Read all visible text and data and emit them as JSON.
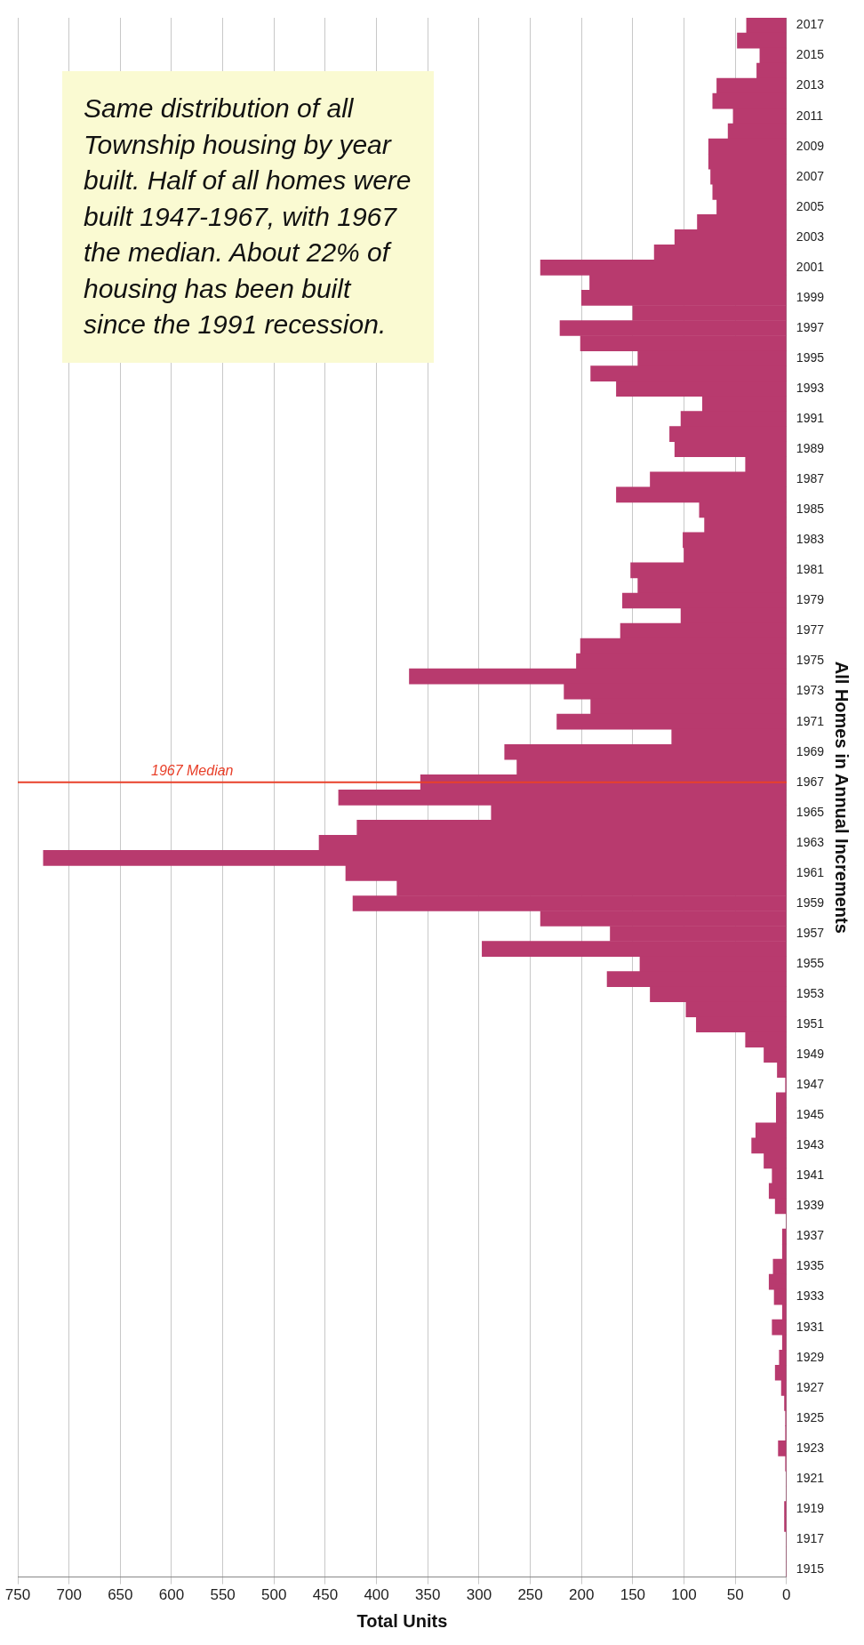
{
  "chart_data": {
    "type": "bar",
    "orientation": "horizontal",
    "xlabel": "Total Units",
    "ylabel": "All Homes in Annual Increments",
    "categories": [
      "2017",
      null,
      "2015",
      null,
      "2013",
      null,
      "2011",
      null,
      "2009",
      null,
      "2007",
      null,
      "2005",
      null,
      "2003",
      null,
      "2001",
      null,
      "1999",
      null,
      "1997",
      null,
      "1995",
      null,
      "1993",
      null,
      "1991",
      null,
      "1989",
      null,
      "1987",
      null,
      "1985",
      null,
      "1983",
      null,
      "1981",
      null,
      "1979",
      null,
      "1977",
      null,
      "1975",
      null,
      "1973",
      null,
      "1971",
      null,
      "1969",
      null,
      "1967",
      null,
      "1965",
      null,
      "1963",
      null,
      "1961",
      null,
      "1959",
      null,
      "1957",
      null,
      "1955",
      null,
      "1953",
      null,
      "1951",
      null,
      "1949",
      null,
      "1947",
      null,
      "1945",
      null,
      "1943",
      null,
      "1941",
      null,
      "1939",
      null,
      "1937",
      null,
      "1935",
      null,
      "1933",
      null,
      "1931",
      null,
      "1929",
      null,
      "1927",
      null,
      "1925",
      null,
      "1923",
      null,
      "1921",
      null,
      "1919",
      null,
      "1917",
      null,
      "1915"
    ],
    "values": [
      39,
      48,
      26,
      29,
      68,
      72,
      52,
      57,
      76,
      76,
      74,
      72,
      68,
      87,
      109,
      129,
      240,
      192,
      200,
      150,
      221,
      201,
      145,
      191,
      166,
      82,
      103,
      114,
      109,
      40,
      133,
      166,
      85,
      80,
      101,
      100,
      152,
      145,
      160,
      103,
      162,
      201,
      205,
      368,
      217,
      191,
      224,
      112,
      275,
      263,
      357,
      437,
      288,
      419,
      456,
      725,
      430,
      380,
      423,
      240,
      172,
      297,
      143,
      175,
      133,
      98,
      88,
      40,
      22,
      9,
      1,
      10,
      10,
      30,
      34,
      22,
      14,
      17,
      11,
      0,
      4,
      4,
      13,
      17,
      12,
      4,
      14,
      4,
      7,
      11,
      5,
      2,
      1,
      1,
      8,
      1,
      0,
      0,
      2,
      2,
      0,
      0,
      0
    ],
    "color": "#b83a6e",
    "xlim": [
      750,
      0
    ],
    "xticks": [
      750,
      700,
      650,
      600,
      550,
      500,
      450,
      400,
      350,
      300,
      250,
      200,
      150,
      100,
      50,
      0
    ],
    "grid": "x",
    "ref_lines": [
      {
        "axis": "y",
        "value": "1967",
        "label": "1967 Median",
        "color": "#e8402a"
      }
    ],
    "annotations": [
      "Same distribution of all Township housing by year built.  Half of all homes were built 1947-1967, with 1967 the median.  About 22% of housing has been built since the 1991 recession."
    ]
  }
}
